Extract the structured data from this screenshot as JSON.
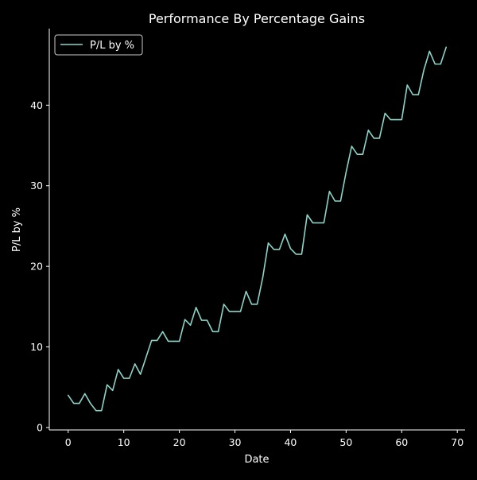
{
  "colors": {
    "background": "#000000",
    "foreground": "#ffffff",
    "series": "#8dd3c7"
  },
  "chart_data": {
    "type": "line",
    "title": "Performance By Percentage Gains",
    "xlabel": "Date",
    "ylabel": "P/L by %",
    "xlim": [
      -3.4,
      71.4
    ],
    "ylim": [
      -0.3,
      49.5
    ],
    "xticks": [
      0,
      10,
      20,
      30,
      40,
      50,
      60,
      70
    ],
    "yticks": [
      0,
      10,
      20,
      30,
      40
    ],
    "grid": false,
    "legend_position": "top-left",
    "series": [
      {
        "name": "P/L by %",
        "color": "#8dd3c7",
        "x": [
          0,
          1,
          2,
          3,
          4,
          5,
          6,
          7,
          8,
          9,
          10,
          11,
          12,
          13,
          14,
          15,
          16,
          17,
          18,
          19,
          20,
          21,
          22,
          23,
          24,
          25,
          26,
          27,
          28,
          29,
          30,
          31,
          32,
          33,
          34,
          35,
          36,
          37,
          38,
          39,
          40,
          41,
          42,
          43,
          44,
          45,
          46,
          47,
          48,
          49,
          50,
          51,
          52,
          53,
          54,
          55,
          56,
          57,
          58,
          59,
          60,
          61,
          62,
          63,
          64,
          65,
          66,
          67,
          68
        ],
        "y": [
          4.0,
          3.0,
          3.0,
          4.2,
          3.0,
          2.1,
          2.1,
          5.3,
          4.6,
          7.2,
          6.1,
          6.1,
          7.9,
          6.6,
          8.7,
          10.8,
          10.8,
          11.9,
          10.7,
          10.7,
          10.7,
          13.4,
          12.7,
          14.9,
          13.3,
          13.3,
          11.9,
          11.9,
          15.3,
          14.4,
          14.4,
          14.4,
          16.9,
          15.3,
          15.3,
          18.6,
          22.9,
          22.1,
          22.1,
          24.0,
          22.2,
          21.5,
          21.5,
          26.4,
          25.4,
          25.4,
          25.4,
          29.3,
          28.1,
          28.1,
          31.7,
          34.9,
          33.9,
          33.9,
          36.9,
          35.9,
          35.9,
          39.0,
          38.2,
          38.2,
          38.2,
          42.5,
          41.3,
          41.3,
          44.4,
          46.7,
          45.1,
          45.1,
          47.2
        ]
      }
    ]
  }
}
